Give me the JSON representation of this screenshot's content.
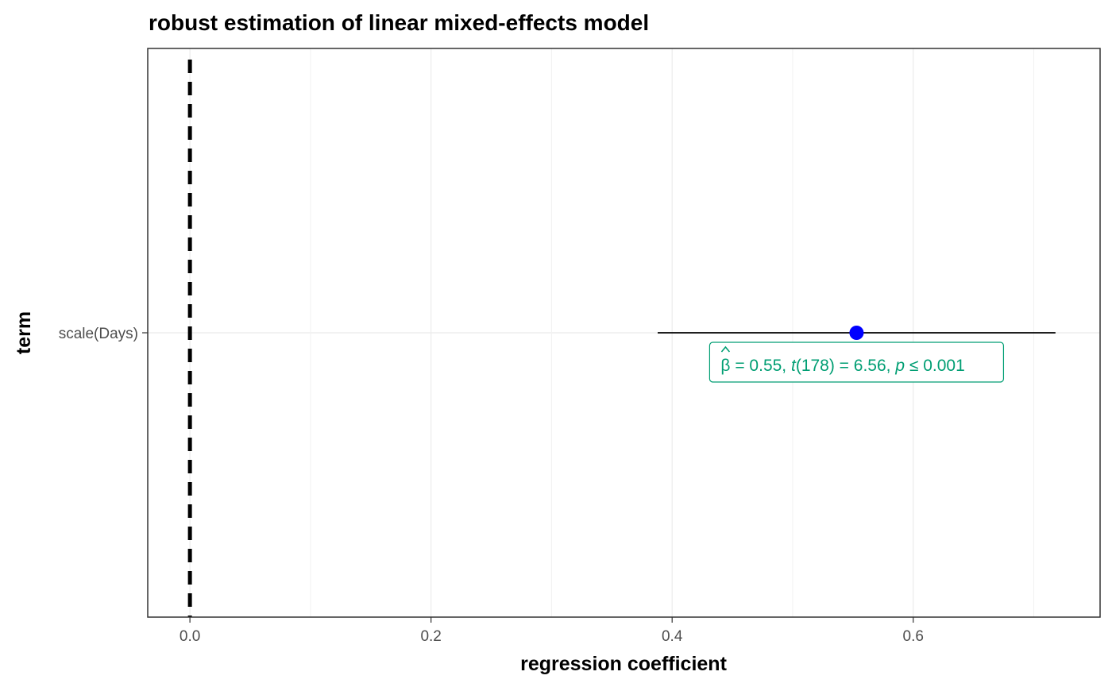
{
  "chart_data": {
    "type": "scatter",
    "title": "robust estimation of linear mixed-effects model",
    "xlabel": "regression coefficient",
    "ylabel": "term",
    "xlim": [
      -0.035,
      0.755
    ],
    "x_ticks": [
      0.0,
      0.2,
      0.4,
      0.6
    ],
    "x_tick_labels": [
      "0.0",
      "0.2",
      "0.4",
      "0.6"
    ],
    "grid": true,
    "reference_line": {
      "x": 0,
      "style": "dashed",
      "color": "#000000"
    },
    "terms": [
      "scale(Days)"
    ],
    "points": [
      {
        "term": "scale(Days)",
        "estimate": 0.553,
        "conf_low": 0.388,
        "conf_high": 0.718,
        "color": "#0000ff",
        "label": {
          "beta": "β",
          "estimate_text": "= 0.55,",
          "stat_symbol": "t",
          "df_text": "(178) = 6.56,",
          "p_symbol": "p",
          "p_text": "≤ 0.001"
        }
      }
    ],
    "label_color": "#009e73"
  }
}
